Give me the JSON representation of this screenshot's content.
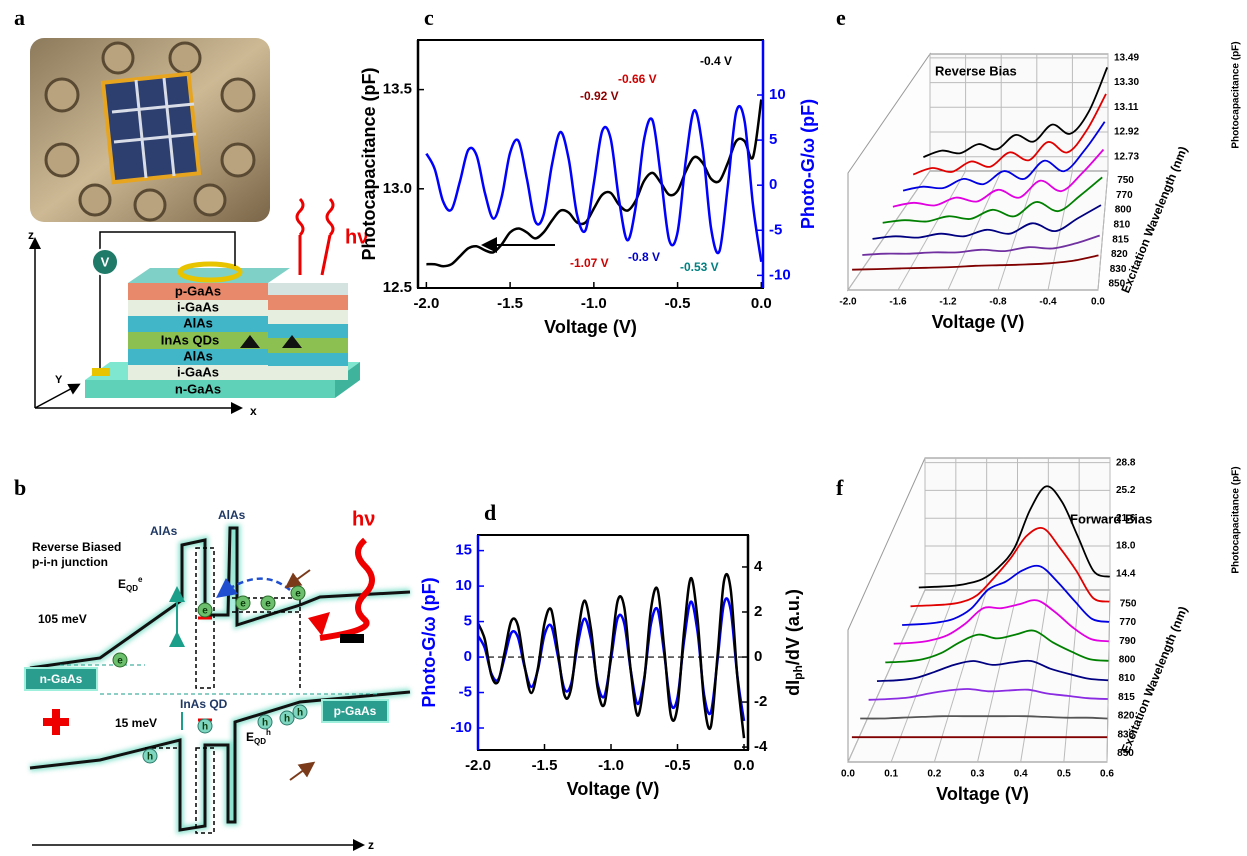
{
  "panel_a": {
    "letter": "a",
    "layers": [
      "p-GaAs",
      "i-GaAs",
      "AlAs",
      "InAs QDs",
      "AlAs",
      "i-GaAs",
      "n-GaAs"
    ],
    "meter": "V",
    "photon": "hν",
    "axes": [
      "z",
      "Y",
      "x"
    ]
  },
  "panel_b": {
    "letter": "b",
    "barrier_left": "AlAs",
    "barrier_right": "AlAs",
    "junction": [
      "Reverse Biased",
      "p-i-n junction"
    ],
    "electron_level": {
      "base": "E",
      "sub": "QD",
      "sup": "e"
    },
    "electron_offset": "105 meV",
    "n_contact": "n-GaAs",
    "dot": "InAs QD",
    "photon": "hν",
    "hole_offset": "15 meV",
    "hole_level": {
      "base": "E",
      "sub": "QD",
      "sup": "h"
    },
    "p_contact": "p-GaAs",
    "carrier_e": "e",
    "carrier_h": "h",
    "axis": "z"
  },
  "chart_data": [
    {
      "type": "line",
      "panel": "c",
      "xlabel": "Voltage (V)",
      "ylabel": "Photocapacitance (pF)",
      "y2label": "Photo-G/ω (pF)",
      "xlim": [
        -2.05,
        0.01
      ],
      "ylim": [
        12.5,
        13.75
      ],
      "y2lim": [
        -11.4,
        16.1
      ],
      "xticks": [
        {
          "value": -2,
          "label": "-2.0"
        },
        -1.5,
        {
          "value": -1,
          "label": "-1.0"
        },
        -0.5,
        {
          "value": 0,
          "label": "0.0"
        }
      ],
      "yticks": [
        12.5,
        {
          "value": 13,
          "label": "13.0"
        },
        13.5
      ],
      "y2ticks": [
        -10,
        -5,
        0,
        5,
        10
      ],
      "x": [
        -2,
        -1.95,
        -1.9,
        -1.85,
        -1.8,
        -1.75,
        -1.7,
        -1.65,
        -1.6,
        -1.55,
        -1.5,
        -1.45,
        -1.4,
        -1.35,
        -1.3,
        -1.25,
        -1.2,
        -1.15,
        -1.1,
        -1.05,
        -1,
        -0.95,
        -0.9,
        -0.85,
        -0.8,
        -0.75,
        -0.7,
        -0.65,
        -0.6,
        -0.55,
        -0.5,
        -0.45,
        -0.4,
        -0.35,
        -0.3,
        -0.25,
        -0.2,
        -0.15,
        -0.1,
        -0.05,
        0
      ],
      "series": [
        {
          "color": "#000000",
          "values": [
            12.62,
            12.62,
            12.61,
            12.62,
            12.66,
            12.7,
            12.71,
            12.69,
            12.68,
            12.72,
            12.78,
            12.8,
            12.78,
            12.75,
            12.78,
            12.84,
            12.89,
            12.88,
            12.83,
            12.83,
            12.9,
            12.97,
            12.98,
            12.92,
            12.89,
            12.94,
            13.04,
            13.08,
            13.03,
            12.97,
            12.99,
            13.09,
            13.16,
            13.13,
            13.05,
            13.04,
            13.13,
            13.24,
            13.24,
            13.16,
            13.45
          ]
        },
        {
          "color": "#0000ff",
          "axis": "y2",
          "values": [
            3.5,
            1.8,
            -1.8,
            -2.7,
            0.4,
            3.9,
            3.3,
            -0.9,
            -3.7,
            -1.3,
            3.6,
            4.9,
            0.7,
            -4.0,
            -3.3,
            2.3,
            5.9,
            2.9,
            -3.3,
            -5.0,
            0.2,
            6.0,
            5.2,
            -1.6,
            -6.1,
            -2.4,
            5.1,
            7.2,
            1.0,
            -6.1,
            -5.2,
            2.9,
            8.3,
            4.1,
            -4.8,
            -7.3,
            -0.1,
            8.1,
            7.1,
            -2.2,
            -8.5
          ]
        }
      ],
      "annotations": [
        {
          "text": "-0.4 V",
          "color": "#000000"
        },
        {
          "text": "-0.66 V",
          "color": "#d00000"
        },
        {
          "text": "-0.92 V",
          "color": "#8b0000"
        },
        {
          "text": "-1.07 V",
          "color": "#d00000"
        },
        {
          "text": "-0.8 V",
          "color": "#0000cc"
        },
        {
          "text": "-0.53 V",
          "color": "#008080"
        }
      ]
    },
    {
      "type": "line",
      "panel": "d",
      "xlabel": "Voltage (V)",
      "ylabel": "Photo-G/ω (pF)",
      "y2label": {
        "text": "dI",
        "sub": "ph",
        "tail": "/dV (a.u.)"
      },
      "xlim": [
        -2,
        0.03
      ],
      "ylim": [
        -13.1,
        17.2
      ],
      "y2lim": [
        -4.13,
        5.42
      ],
      "hline": 0,
      "xticks": [
        {
          "value": -2,
          "label": "-2.0"
        },
        -1.5,
        {
          "value": -1,
          "label": "-1.0"
        },
        -0.5,
        {
          "value": 0,
          "label": "0.0"
        }
      ],
      "yticks": [
        -10,
        -5,
        0,
        5,
        10,
        15
      ],
      "y2ticks": [
        -4,
        -2,
        0,
        2,
        4
      ],
      "x": [
        -2,
        -1.95,
        -1.9,
        -1.85,
        -1.8,
        -1.75,
        -1.7,
        -1.65,
        -1.6,
        -1.55,
        -1.5,
        -1.45,
        -1.4,
        -1.35,
        -1.3,
        -1.25,
        -1.2,
        -1.15,
        -1.1,
        -1.05,
        -1,
        -0.95,
        -0.9,
        -0.85,
        -0.8,
        -0.75,
        -0.7,
        -0.65,
        -0.6,
        -0.55,
        -0.5,
        -0.45,
        -0.4,
        -0.35,
        -0.3,
        -0.25,
        -0.2,
        -0.15,
        -0.1,
        -0.05,
        0
      ],
      "series": [
        {
          "color": "#0000ff",
          "values": [
            3.0,
            1.3,
            -2.3,
            -3.2,
            -0.1,
            3.4,
            2.8,
            -1.4,
            -4.2,
            -1.8,
            3.1,
            4.4,
            0.2,
            -4.5,
            -3.8,
            1.8,
            5.4,
            2.4,
            -3.8,
            -5.5,
            -0.3,
            5.5,
            4.7,
            -2.1,
            -6.6,
            -2.9,
            4.6,
            6.7,
            0.5,
            -6.6,
            -5.7,
            2.4,
            7.8,
            3.6,
            -5.3,
            -7.8,
            -0.6,
            7.6,
            6.6,
            -2.7,
            -9.0
          ]
        },
        {
          "color": "#000000",
          "axis": "y2",
          "values": [
            1.5,
            0.8,
            -0.8,
            -1.1,
            0.2,
            1.6,
            1.4,
            -0.4,
            -1.6,
            -0.5,
            1.5,
            2.1,
            0.3,
            -1.7,
            -1.4,
            1.0,
            2.5,
            1.2,
            -1.4,
            -2.1,
            0.1,
            2.5,
            2.2,
            -0.7,
            -2.6,
            -1.0,
            2.1,
            3.0,
            0.4,
            -2.6,
            -2.2,
            1.2,
            3.5,
            1.7,
            -2.0,
            -3.1,
            0.0,
            3.4,
            3.0,
            -0.9,
            -3.6
          ]
        }
      ]
    },
    {
      "type": "waterfall",
      "panel": "e",
      "title": "Reverse Bias",
      "xlabel": "Voltage (V)",
      "ylabel": "Photocapacitance (pF)",
      "depth_label": "Excitation Wavelength (nm)",
      "xlim": [
        -2,
        0
      ],
      "ylim": [
        12.62,
        13.52
      ],
      "xticks": [
        {
          "value": -2,
          "label": "-2.0"
        },
        -1.6,
        -1.2,
        -0.8,
        -0.4,
        {
          "value": 0,
          "label": "0.0"
        }
      ],
      "yticks": [
        12.73,
        12.92,
        13.11,
        {
          "value": 13.3,
          "label": "13.30"
        },
        13.49
      ],
      "x": [
        -2,
        -1.8,
        -1.6,
        -1.4,
        -1.2,
        -1,
        -0.8,
        -0.6,
        -0.4,
        -0.2,
        0
      ],
      "series": [
        {
          "name": "750",
          "color": "#000000",
          "values": [
            12.8,
            12.85,
            12.83,
            12.9,
            12.86,
            12.97,
            12.92,
            13.05,
            12.98,
            13.15,
            13.49
          ]
        },
        {
          "name": "770",
          "color": "#e00000",
          "values": [
            12.78,
            12.83,
            12.8,
            12.88,
            12.84,
            12.95,
            12.89,
            13.03,
            12.95,
            13.12,
            13.4
          ]
        },
        {
          "name": "800",
          "color": "#0000e0",
          "values": [
            12.77,
            12.8,
            12.79,
            12.86,
            12.82,
            12.92,
            12.86,
            13.0,
            12.92,
            13.08,
            13.3
          ]
        },
        {
          "name": "810",
          "color": "#e000e0",
          "values": [
            12.76,
            12.79,
            12.77,
            12.83,
            12.8,
            12.89,
            12.83,
            12.96,
            12.88,
            13.02,
            13.2
          ]
        },
        {
          "name": "815",
          "color": "#008000",
          "values": [
            12.75,
            12.77,
            12.76,
            12.8,
            12.78,
            12.85,
            12.8,
            12.91,
            12.84,
            12.96,
            13.1
          ]
        },
        {
          "name": "820",
          "color": "#000080",
          "values": [
            12.74,
            12.76,
            12.75,
            12.78,
            12.76,
            12.81,
            12.78,
            12.86,
            12.8,
            12.9,
            13.0
          ]
        },
        {
          "name": "830",
          "color": "#7030a0",
          "values": [
            12.73,
            12.74,
            12.74,
            12.75,
            12.75,
            12.77,
            12.76,
            12.79,
            12.78,
            12.82,
            12.88
          ]
        },
        {
          "name": "850",
          "color": "#800000",
          "values": [
            12.73,
            12.735,
            12.74,
            12.745,
            12.75,
            12.76,
            12.765,
            12.77,
            12.78,
            12.8,
            12.84
          ]
        }
      ]
    },
    {
      "type": "waterfall",
      "panel": "f",
      "title": "Forward Bias",
      "xlabel": "Voltage (V)",
      "ylabel": "Photocapacitance (pF)",
      "depth_label": "Excitation Wavelength (nm)",
      "xlim": [
        0,
        0.6
      ],
      "ylim": [
        12.3,
        29.4
      ],
      "xticks": [
        {
          "value": 0,
          "label": "0.0"
        },
        0.1,
        0.2,
        0.3,
        0.4,
        0.5,
        0.6
      ],
      "yticks": [
        14.4,
        {
          "value": 18,
          "label": "18.0"
        },
        21.6,
        25.2,
        28.8
      ],
      "x": [
        0,
        0.05,
        0.1,
        0.15,
        0.2,
        0.25,
        0.3,
        0.35,
        0.4,
        0.45,
        0.5,
        0.55,
        0.6
      ],
      "series": [
        {
          "name": "750",
          "color": "#000000",
          "values": [
            14.4,
            14.5,
            14.6,
            14.9,
            15.5,
            17.0,
            19.5,
            24.5,
            27.5,
            25.5,
            21.0,
            16.5,
            15.8
          ]
        },
        {
          "name": "770",
          "color": "#e00000",
          "values": [
            14.4,
            14.5,
            14.6,
            14.9,
            15.8,
            18.0,
            20.5,
            23.5,
            24.5,
            22.0,
            19.0,
            15.5,
            15.0
          ]
        },
        {
          "name": "790",
          "color": "#0000e0",
          "values": [
            14.4,
            14.5,
            14.7,
            15.2,
            16.5,
            19.0,
            20.0,
            21.5,
            22.0,
            20.0,
            17.5,
            15.2,
            14.8
          ]
        },
        {
          "name": "800",
          "color": "#e000e0",
          "values": [
            14.4,
            14.5,
            14.8,
            15.5,
            17.0,
            19.0,
            19.0,
            19.5,
            20.0,
            18.5,
            16.5,
            15.0,
            14.7
          ]
        },
        {
          "name": "810",
          "color": "#008000",
          "values": [
            14.4,
            14.5,
            14.8,
            15.6,
            17.0,
            18.0,
            17.5,
            18.0,
            18.5,
            17.0,
            15.8,
            14.8,
            14.6
          ]
        },
        {
          "name": "815",
          "color": "#000080",
          "values": [
            14.4,
            14.5,
            14.8,
            15.6,
            16.5,
            17.0,
            16.5,
            16.8,
            17.0,
            16.0,
            15.3,
            14.7,
            14.5
          ]
        },
        {
          "name": "820",
          "color": "#8a2be2",
          "values": [
            14.4,
            14.5,
            14.7,
            15.2,
            15.6,
            15.8,
            15.5,
            15.6,
            15.7,
            15.2,
            14.9,
            14.6,
            14.5
          ]
        },
        {
          "name": "830",
          "color": "#555555",
          "values": [
            14.4,
            14.4,
            14.5,
            14.6,
            14.7,
            14.7,
            14.7,
            14.7,
            14.7,
            14.6,
            14.5,
            14.5,
            14.4
          ]
        },
        {
          "name": "850",
          "color": "#800000",
          "values": [
            14.4,
            14.4,
            14.4,
            14.4,
            14.4,
            14.4,
            14.4,
            14.4,
            14.4,
            14.4,
            14.4,
            14.4,
            14.4
          ]
        }
      ]
    }
  ]
}
